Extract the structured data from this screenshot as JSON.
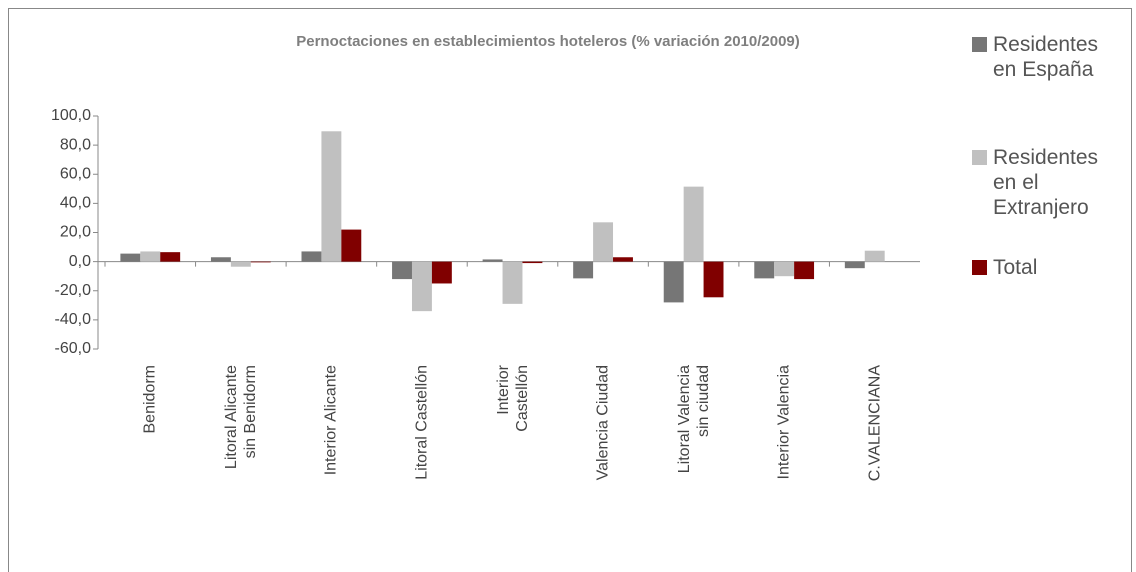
{
  "chart_data": {
    "type": "bar",
    "title": "Pernoctaciones en establecimientos hoteleros (% variación 2010/2009)",
    "categories": [
      "Benidorm",
      "Litoral Alicante\nsin Benidorm",
      "Interior Alicante",
      "Litoral Castellón",
      "Interior\nCastellón",
      "Valencia Ciudad",
      "Litoral Valencia\nsin ciudad",
      "Interior Valencia",
      "C.VALENCIANA"
    ],
    "series": [
      {
        "name": "Residentes en España",
        "color": "#767676",
        "values": [
          5.5,
          3,
          7,
          -12,
          1.5,
          -11.5,
          -28,
          -11.5,
          -4.5
        ]
      },
      {
        "name": "Residentes en el Extranjero",
        "color": "#c0c0c0",
        "values": [
          7,
          -3.5,
          89.5,
          -34,
          -29,
          27,
          51.5,
          -10,
          7.5
        ]
      },
      {
        "name": "Total",
        "color": "#800000",
        "values": [
          6.5,
          -0.5,
          22,
          -15,
          -1,
          3,
          -24.5,
          -12,
          null
        ]
      }
    ],
    "ylim": [
      -60,
      100
    ],
    "yticks": [
      {
        "value": -60,
        "label": "-60,0"
      },
      {
        "value": -40,
        "label": "-40,0"
      },
      {
        "value": -20,
        "label": "-20,0"
      },
      {
        "value": 0,
        "label": "0,0"
      },
      {
        "value": 20,
        "label": "20,0"
      },
      {
        "value": 40,
        "label": "40,0"
      },
      {
        "value": 60,
        "label": "60,0"
      },
      {
        "value": 80,
        "label": "80,0"
      },
      {
        "value": 100,
        "label": "100,0"
      }
    ],
    "legend": "right"
  }
}
